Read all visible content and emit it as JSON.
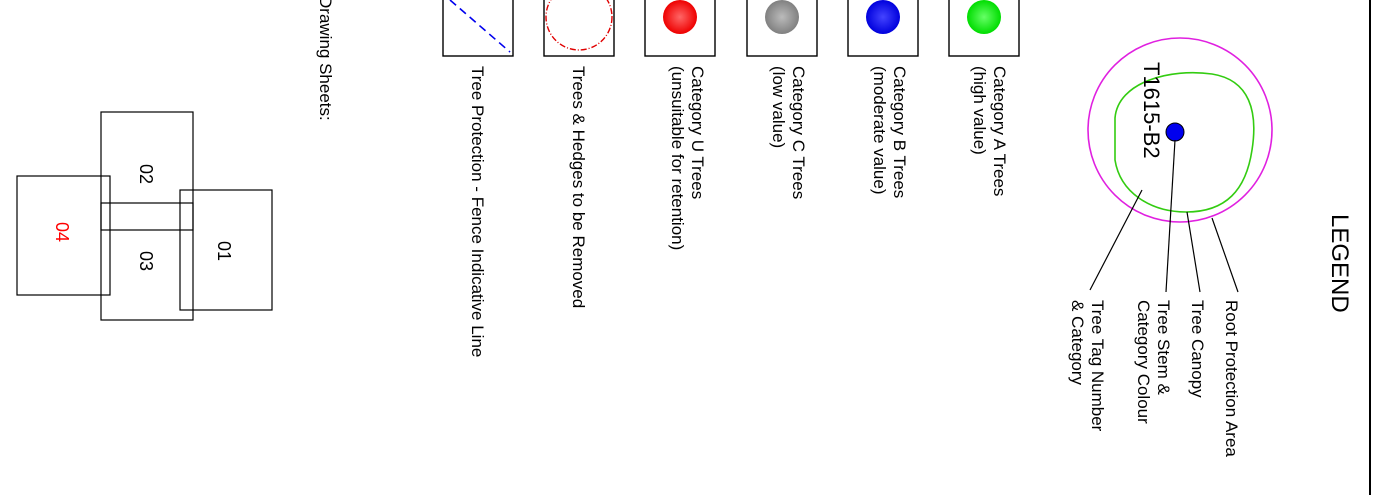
{
  "legend": {
    "title": "LEGEND",
    "diagram_labels": {
      "root_protection_area": "Root Protection Area",
      "tree_canopy": "Tree Canopy",
      "tree_stem_line1": "Tree Stem &",
      "tree_stem_line2": "Category Colour",
      "tree_tag_line1": "Tree Tag Number",
      "tree_tag_line2": "& Category"
    },
    "example_tag": "T1615-B2",
    "categories": [
      {
        "line1": "Category A Trees",
        "line2": "(high value)",
        "color": "#00ee00"
      },
      {
        "line1": "Category B Trees",
        "line2": "(moderate value)",
        "color": "#0000ee"
      },
      {
        "line1": "Category C Trees",
        "line2": "(low value)",
        "color": "#8a8a8a"
      },
      {
        "line1": "Category U Trees",
        "line2": "(unsuitable for retention)",
        "color": "#ff0000"
      }
    ],
    "removed_label": "Trees & Hedges to be Removed",
    "fence_label": "Tree Protection - Fence Indicative Line",
    "colors": {
      "root_protection": "#e020e0",
      "canopy": "#33cc11",
      "stem": "#0000ee",
      "removed": "#e00000",
      "fence": "#0000ee",
      "active_sheet": "#ff0000"
    }
  },
  "drawing_sheets": {
    "heading": "Drawing Sheets:",
    "sheets": [
      {
        "label": "01",
        "active": false
      },
      {
        "label": "02",
        "active": false
      },
      {
        "label": "03",
        "active": false
      },
      {
        "label": "04",
        "active": true
      }
    ]
  }
}
